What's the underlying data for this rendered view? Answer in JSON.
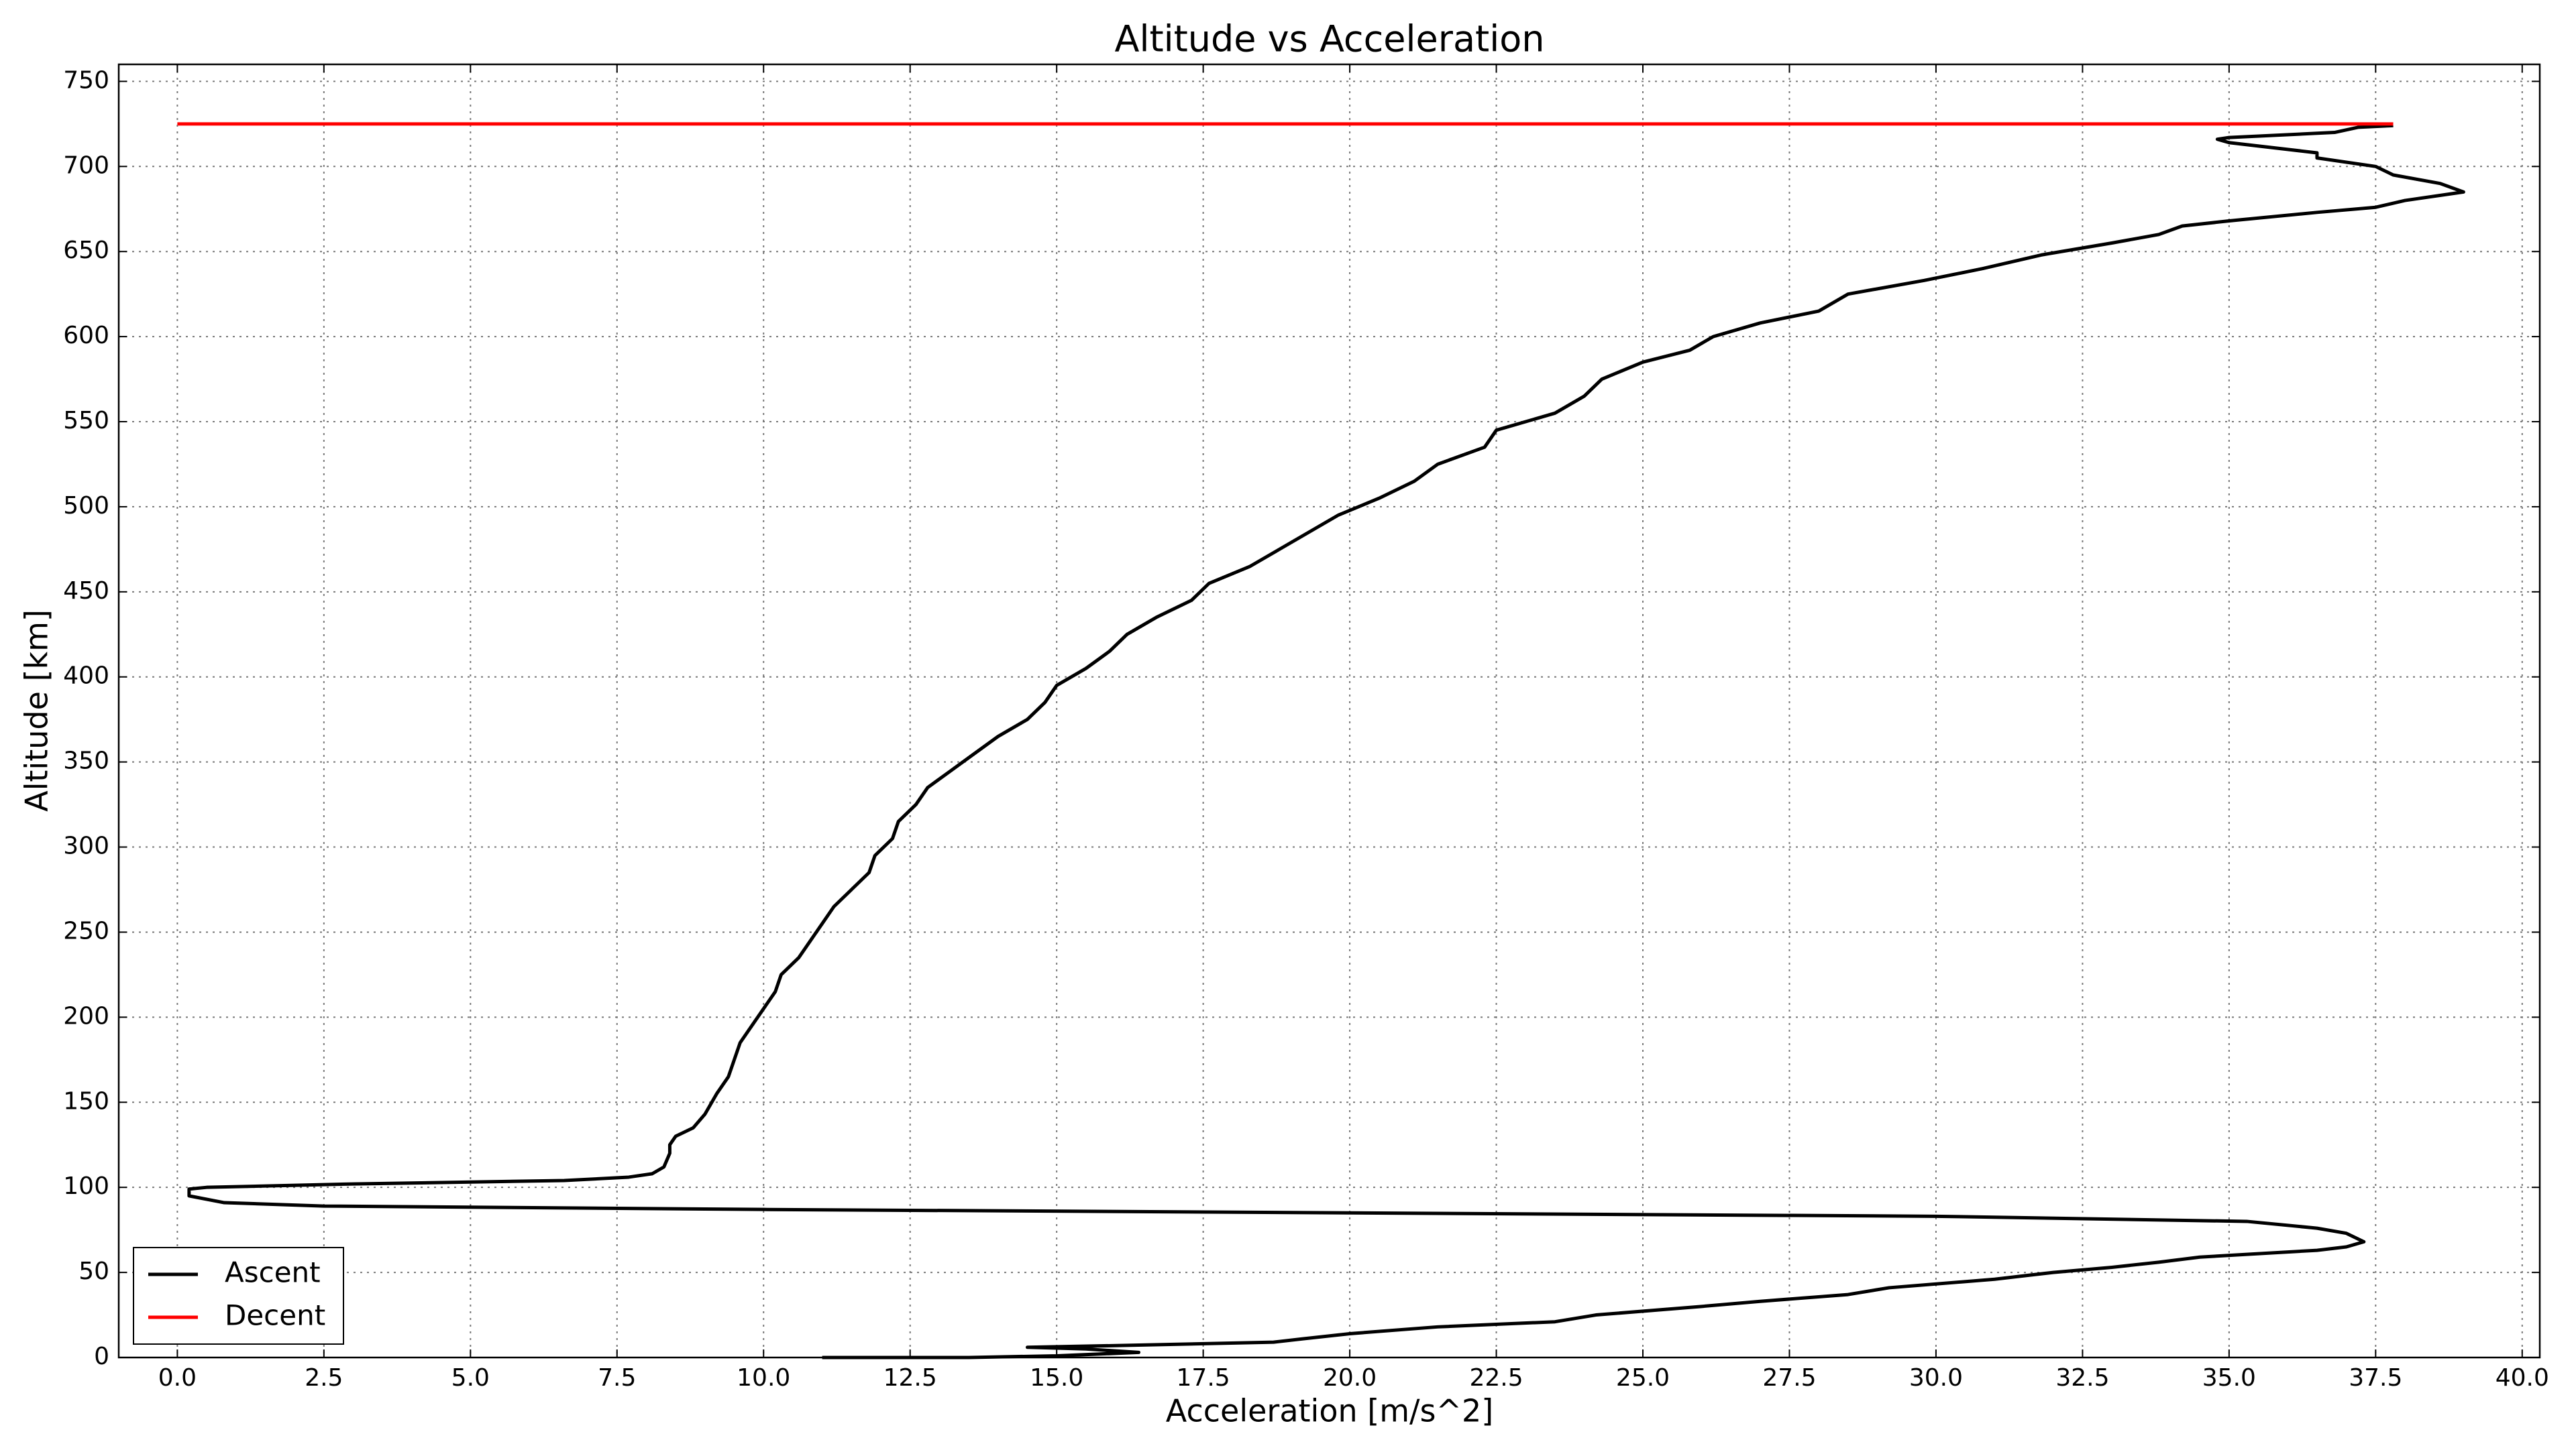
{
  "chart_data": {
    "type": "line",
    "title": "Altitude vs Acceleration",
    "x_label": "Acceleration [m/s^2]",
    "y_label": "Altitude [km]",
    "xlim": [
      -1,
      40.3
    ],
    "ylim": [
      0,
      760
    ],
    "xticks": [
      {
        "value": 0,
        "label": "0.0"
      },
      2.5,
      {
        "value": 5,
        "label": "5.0"
      },
      7.5,
      {
        "value": 10,
        "label": "10.0"
      },
      12.5,
      {
        "value": 15,
        "label": "15.0"
      },
      17.5,
      {
        "value": 20,
        "label": "20.0"
      },
      22.5,
      {
        "value": 25,
        "label": "25.0"
      },
      27.5,
      {
        "value": 30,
        "label": "30.0"
      },
      32.5,
      {
        "value": 35,
        "label": "35.0"
      },
      37.5,
      {
        "value": 40,
        "label": "40.0"
      }
    ],
    "yticks": [
      0,
      50,
      100,
      150,
      200,
      250,
      300,
      350,
      400,
      450,
      500,
      550,
      600,
      650,
      700,
      750
    ],
    "grid": true,
    "legend": "lower left",
    "series": [
      {
        "name": "Ascent",
        "color": "#000000",
        "x": [
          11.0,
          13.5,
          15.0,
          16.4,
          15.5,
          14.5,
          16,
          18.7,
          19.2,
          20,
          21.5,
          23.5,
          24.2,
          26,
          27,
          28.5,
          29.2,
          31,
          32,
          33,
          33.8,
          34.5,
          35.5,
          36.5,
          37,
          37.3,
          37,
          36.5,
          35.3,
          30,
          20,
          10,
          2.5,
          0.8,
          0.2,
          0.2,
          0.5,
          3,
          6.6,
          7.7,
          8.1,
          8.3,
          8.4,
          8.4,
          8.5,
          8.8,
          9.0,
          9.2,
          9.4,
          9.5,
          9.6,
          9.8,
          10.0,
          10.2,
          10.3,
          10.6,
          10.8,
          11,
          11.2,
          11.5,
          11.8,
          11.9,
          12.2,
          12.3,
          12.6,
          12.8,
          13.2,
          13.6,
          14,
          14.5,
          14.8,
          15.0,
          15.5,
          15.9,
          16.2,
          16.7,
          17.3,
          17.6,
          18.3,
          18.8,
          19.3,
          19.8,
          20.5,
          21.1,
          21.5,
          22.3,
          22.5,
          23.5,
          24,
          24.3,
          25,
          25.8,
          26.2,
          27,
          28,
          28.5,
          29.8,
          30.8,
          31.8,
          33,
          33.8,
          34.2,
          35,
          36.5,
          37.5,
          38,
          39,
          38.6,
          37.8,
          37.5,
          36.5,
          36.5,
          35,
          34.8,
          35,
          36.8,
          37.2,
          37.8
        ],
        "values": [
          0,
          0,
          1,
          3,
          5,
          6,
          7,
          9,
          11,
          14,
          18,
          21,
          25,
          30,
          33,
          37,
          41,
          46,
          50,
          53,
          56,
          59,
          61,
          63,
          65,
          68,
          73,
          76,
          80,
          83,
          85,
          87,
          89,
          91,
          95,
          99,
          100,
          102,
          104,
          106,
          108,
          112,
          120,
          125,
          130,
          135,
          143,
          155,
          165,
          175,
          185,
          195,
          205,
          215,
          225,
          235,
          245,
          255,
          265,
          275,
          285,
          295,
          305,
          315,
          325,
          335,
          345,
          355,
          365,
          375,
          385,
          395,
          405,
          415,
          425,
          435,
          445,
          455,
          465,
          475,
          485,
          495,
          505,
          515,
          525,
          535,
          545,
          555,
          565,
          575,
          585,
          592,
          600,
          608,
          615,
          625,
          633,
          640,
          648,
          655,
          660,
          665,
          668,
          673,
          676,
          680,
          685,
          690,
          695,
          700,
          705,
          708,
          714,
          716,
          717,
          720,
          723,
          724
        ]
      },
      {
        "name": "Decent",
        "color": "#ff0000",
        "x": [
          0,
          37.8
        ],
        "values": [
          725,
          725
        ]
      }
    ]
  }
}
